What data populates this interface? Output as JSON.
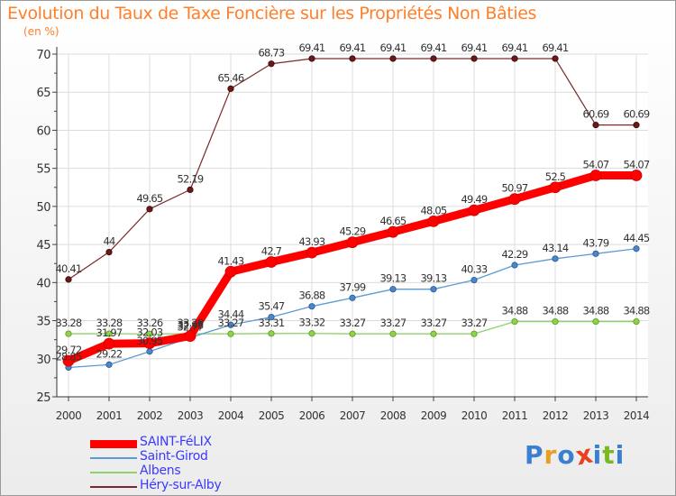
{
  "title": "Evolution du Taux de Taxe Foncière sur les Propriétés Non Bâties",
  "subtitle": "(en %)",
  "logo": {
    "letters": [
      "P",
      "r",
      "o",
      "x",
      "i",
      "t",
      "i"
    ],
    "colors": [
      "#3a7fd0",
      "#e8a020",
      "#3a7fd0",
      "#e84020",
      "#3a7fd0",
      "#7ab820",
      "#3a7fd0"
    ]
  },
  "chart_data": {
    "type": "line",
    "title": "Evolution du Taux de Taxe Foncière sur les Propriétés Non Bâties",
    "ylabel": "(en %)",
    "xlabel": "",
    "x": [
      "2000",
      "2001",
      "2002",
      "2003",
      "2004",
      "2005",
      "2006",
      "2007",
      "2008",
      "2009",
      "2010",
      "2011",
      "2012",
      "2013",
      "2014"
    ],
    "ylim": [
      25,
      70
    ],
    "yticks": [
      "25",
      "30",
      "35",
      "40",
      "45",
      "50",
      "55",
      "60",
      "65",
      "70"
    ],
    "grid": true,
    "legend": "bottom-left",
    "series": [
      {
        "name": "SAINT-FéLIX",
        "color": "#ff0000",
        "values": [
          29.72,
          31.97,
          32.03,
          32.98,
          41.43,
          42.7,
          43.93,
          45.29,
          46.65,
          48.05,
          49.49,
          50.97,
          52.5,
          54.07,
          54.07
        ],
        "labels": [
          "29.72",
          "31.97",
          "32.03",
          "32.98",
          "41.43",
          "42.7",
          "43.93",
          "45.29",
          "46.65",
          "48.05",
          "49.49",
          "50.97",
          "52.5",
          "54.07",
          "54.07"
        ]
      },
      {
        "name": "Saint-Girod",
        "color": "#5b9bd5",
        "values": [
          28.85,
          29.22,
          30.95,
          32.77,
          34.44,
          35.47,
          36.88,
          37.99,
          39.13,
          39.13,
          40.33,
          42.29,
          43.14,
          43.79,
          44.45
        ],
        "labels": [
          "28.85",
          "29.22",
          "30.95",
          "32.77",
          "34.44",
          "35.47",
          "36.88",
          "37.99",
          "39.13",
          "39.13",
          "40.33",
          "42.29",
          "43.14",
          "43.79",
          "44.45"
        ]
      },
      {
        "name": "Albens",
        "color": "#8fd16a",
        "values": [
          33.28,
          33.28,
          33.26,
          33.28,
          33.27,
          33.31,
          33.32,
          33.27,
          33.27,
          33.27,
          33.27,
          34.88,
          34.88,
          34.88,
          34.88
        ],
        "labels": [
          "33.28",
          "33.28",
          "33.26",
          "33.28",
          "33.27",
          "33.31",
          "33.32",
          "33.27",
          "33.27",
          "33.27",
          "33.27",
          "34.88",
          "34.88",
          "34.88",
          "34.88"
        ]
      },
      {
        "name": "Héry-sur-Alby",
        "color": "#7a2a2a",
        "values": [
          40.41,
          44,
          49.65,
          52.19,
          65.46,
          68.73,
          69.41,
          69.41,
          69.41,
          69.41,
          69.41,
          69.41,
          69.41,
          60.69,
          60.69
        ],
        "labels": [
          "40.41",
          "44",
          "49.65",
          "52.19",
          "65.46",
          "68.73",
          "69.41",
          "69.41",
          "69.41",
          "69.41",
          "69.41",
          "69.41",
          "69.41",
          "60.69",
          "60.69"
        ]
      }
    ]
  }
}
